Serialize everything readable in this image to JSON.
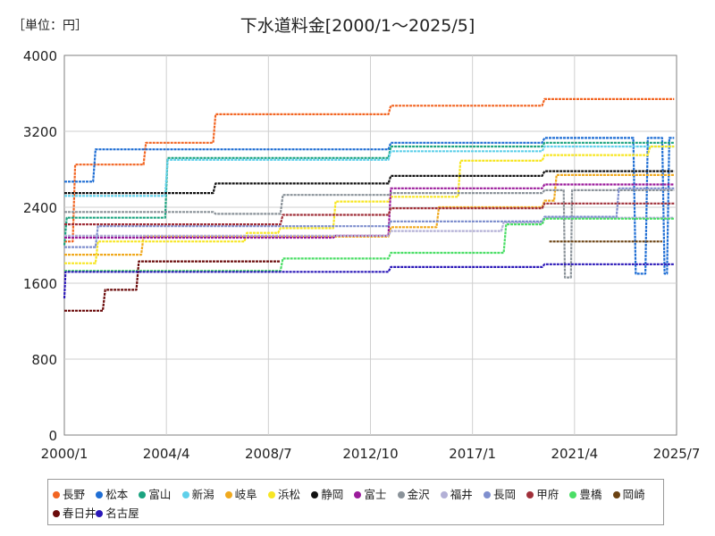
{
  "unit_label": "［単位：円］",
  "chart_data": {
    "type": "line",
    "title": "下水道料金[2000/1～2025/5]",
    "xlabel": "",
    "ylabel": "",
    "x_ticks": [
      "2000/1",
      "2004/4",
      "2008/7",
      "2012/10",
      "2017/1",
      "2021/4",
      "2025/7"
    ],
    "y_ticks": [
      0,
      800,
      1600,
      2400,
      3200,
      4000
    ],
    "ylim": [
      0,
      4000
    ],
    "xlim": [
      2000.0,
      2025.5
    ],
    "grid": true,
    "legend_position": "bottom",
    "series": [
      {
        "name": "長野",
        "color": "#f26522",
        "points": [
          [
            2000.0,
            2040
          ],
          [
            2000.35,
            2040
          ],
          [
            2000.45,
            2850
          ],
          [
            2003.3,
            2850
          ],
          [
            2003.4,
            3080
          ],
          [
            2006.2,
            3080
          ],
          [
            2006.3,
            3380
          ],
          [
            2013.5,
            3380
          ],
          [
            2013.6,
            3470
          ],
          [
            2019.9,
            3470
          ],
          [
            2020.0,
            3540
          ],
          [
            2025.4,
            3540
          ]
        ]
      },
      {
        "name": "松本",
        "color": "#1f6ed4",
        "points": [
          [
            2000.0,
            2670
          ],
          [
            2001.2,
            2670
          ],
          [
            2001.3,
            3010
          ],
          [
            2013.5,
            3010
          ],
          [
            2013.6,
            3080
          ],
          [
            2019.9,
            3080
          ],
          [
            2020.0,
            3130
          ],
          [
            2023.7,
            3130
          ],
          [
            2023.8,
            1700
          ],
          [
            2024.2,
            1700
          ],
          [
            2024.3,
            3130
          ],
          [
            2024.9,
            3130
          ],
          [
            2025.0,
            1700
          ],
          [
            2025.1,
            1700
          ],
          [
            2025.2,
            3130
          ],
          [
            2025.4,
            3130
          ]
        ]
      },
      {
        "name": "富山",
        "color": "#1aa37f",
        "points": [
          [
            2000.0,
            2000
          ],
          [
            2000.1,
            2290
          ],
          [
            2004.2,
            2290
          ],
          [
            2004.3,
            2920
          ],
          [
            2013.5,
            2920
          ],
          [
            2013.6,
            3040
          ],
          [
            2019.9,
            3040
          ],
          [
            2020.0,
            3080
          ],
          [
            2025.4,
            3080
          ]
        ]
      },
      {
        "name": "新潟",
        "color": "#5fd0ea",
        "points": [
          [
            2000.0,
            2520
          ],
          [
            2004.2,
            2520
          ],
          [
            2004.3,
            2900
          ],
          [
            2013.5,
            2900
          ],
          [
            2013.6,
            2990
          ],
          [
            2019.9,
            2990
          ],
          [
            2020.0,
            3040
          ],
          [
            2025.4,
            3040
          ]
        ]
      },
      {
        "name": "岐阜",
        "color": "#f0a91e",
        "points": [
          [
            2000.0,
            1900
          ],
          [
            2003.2,
            1900
          ],
          [
            2003.3,
            2090
          ],
          [
            2013.5,
            2090
          ],
          [
            2013.6,
            2190
          ],
          [
            2015.5,
            2190
          ],
          [
            2015.6,
            2400
          ],
          [
            2019.9,
            2400
          ],
          [
            2020.0,
            2470
          ],
          [
            2020.4,
            2470
          ],
          [
            2020.5,
            2740
          ],
          [
            2025.4,
            2740
          ]
        ]
      },
      {
        "name": "浜松",
        "color": "#f7e623",
        "points": [
          [
            2000.0,
            1810
          ],
          [
            2001.3,
            1810
          ],
          [
            2001.4,
            2040
          ],
          [
            2007.5,
            2040
          ],
          [
            2007.6,
            2130
          ],
          [
            2008.9,
            2130
          ],
          [
            2009.0,
            2180
          ],
          [
            2011.2,
            2180
          ],
          [
            2011.3,
            2460
          ],
          [
            2013.5,
            2460
          ],
          [
            2013.6,
            2510
          ],
          [
            2016.4,
            2510
          ],
          [
            2016.5,
            2890
          ],
          [
            2019.9,
            2890
          ],
          [
            2020.0,
            2950
          ],
          [
            2024.3,
            2950
          ],
          [
            2024.4,
            3040
          ],
          [
            2025.4,
            3040
          ]
        ]
      },
      {
        "name": "静岡",
        "color": "#111111",
        "points": [
          [
            2000.0,
            2550
          ],
          [
            2006.2,
            2550
          ],
          [
            2006.3,
            2650
          ],
          [
            2013.5,
            2650
          ],
          [
            2013.6,
            2730
          ],
          [
            2019.9,
            2730
          ],
          [
            2020.0,
            2780
          ],
          [
            2025.4,
            2780
          ]
        ]
      },
      {
        "name": "富士",
        "color": "#9b1b9b",
        "points": [
          [
            2000.0,
            2080
          ],
          [
            2011.2,
            2080
          ],
          [
            2011.3,
            2100
          ],
          [
            2013.5,
            2100
          ],
          [
            2013.6,
            2600
          ],
          [
            2019.9,
            2600
          ],
          [
            2020.0,
            2640
          ],
          [
            2025.4,
            2640
          ]
        ]
      },
      {
        "name": "金沢",
        "color": "#8a9299",
        "points": [
          [
            2000.0,
            2350
          ],
          [
            2006.2,
            2350
          ],
          [
            2006.3,
            2330
          ],
          [
            2009.0,
            2330
          ],
          [
            2009.1,
            2530
          ],
          [
            2013.5,
            2530
          ],
          [
            2013.6,
            2550
          ],
          [
            2019.9,
            2550
          ],
          [
            2020.0,
            2580
          ],
          [
            2020.8,
            2580
          ],
          [
            2020.85,
            1660
          ],
          [
            2021.1,
            1660
          ],
          [
            2021.15,
            2580
          ],
          [
            2025.4,
            2580
          ]
        ]
      },
      {
        "name": "福井",
        "color": "#b3b0d6",
        "points": [
          [
            2000.0,
            2100
          ],
          [
            2013.5,
            2100
          ],
          [
            2013.6,
            2150
          ],
          [
            2018.2,
            2150
          ],
          [
            2018.3,
            2240
          ],
          [
            2019.9,
            2240
          ],
          [
            2020.0,
            2290
          ],
          [
            2025.4,
            2290
          ]
        ]
      },
      {
        "name": "長岡",
        "color": "#7f8fce",
        "points": [
          [
            2000.0,
            1980
          ],
          [
            2001.3,
            1980
          ],
          [
            2001.4,
            2200
          ],
          [
            2013.5,
            2200
          ],
          [
            2013.6,
            2250
          ],
          [
            2019.9,
            2250
          ],
          [
            2020.0,
            2300
          ],
          [
            2023.0,
            2300
          ],
          [
            2023.1,
            2600
          ],
          [
            2025.4,
            2600
          ]
        ]
      },
      {
        "name": "甲府",
        "color": "#a0303a",
        "points": [
          [
            2000.0,
            2220
          ],
          [
            2009.0,
            2220
          ],
          [
            2009.1,
            2320
          ],
          [
            2013.5,
            2320
          ],
          [
            2013.6,
            2390
          ],
          [
            2019.9,
            2390
          ],
          [
            2020.0,
            2440
          ],
          [
            2025.4,
            2440
          ]
        ]
      },
      {
        "name": "豊橋",
        "color": "#4bde66",
        "points": [
          [
            2000.0,
            1730
          ],
          [
            2009.0,
            1730
          ],
          [
            2009.1,
            1860
          ],
          [
            2013.5,
            1860
          ],
          [
            2013.6,
            1920
          ],
          [
            2018.3,
            1920
          ],
          [
            2018.4,
            2220
          ],
          [
            2019.9,
            2220
          ],
          [
            2020.0,
            2280
          ],
          [
            2025.4,
            2280
          ]
        ]
      },
      {
        "name": "岡崎",
        "color": "#6b4212",
        "points": [
          [
            2020.2,
            2040
          ],
          [
            2024.9,
            2040
          ]
        ]
      },
      {
        "name": "春日井",
        "color": "#6b0b0b",
        "points": [
          [
            2000.0,
            1310
          ],
          [
            2001.6,
            1310
          ],
          [
            2001.7,
            1530
          ],
          [
            2003.0,
            1530
          ],
          [
            2003.1,
            1830
          ],
          [
            2009.0,
            1830
          ]
        ]
      },
      {
        "name": "名古屋",
        "color": "#2a17b8",
        "points": [
          [
            2000.0,
            1440
          ],
          [
            2000.05,
            1720
          ],
          [
            2013.5,
            1720
          ],
          [
            2013.6,
            1770
          ],
          [
            2019.9,
            1770
          ],
          [
            2020.0,
            1800
          ],
          [
            2025.4,
            1800
          ]
        ]
      }
    ]
  }
}
